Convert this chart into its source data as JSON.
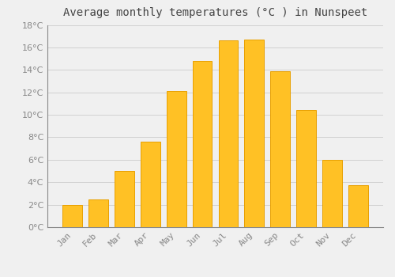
{
  "title": "Average monthly temperatures (°C ) in Nunspeet",
  "months": [
    "Jan",
    "Feb",
    "Mar",
    "Apr",
    "May",
    "Jun",
    "Jul",
    "Aug",
    "Sep",
    "Oct",
    "Nov",
    "Dec"
  ],
  "temperatures": [
    2.0,
    2.5,
    5.0,
    7.6,
    12.1,
    14.8,
    16.6,
    16.7,
    13.9,
    10.4,
    6.0,
    3.7
  ],
  "bar_color": "#FFC125",
  "bar_edge_color": "#E8A000",
  "background_color": "#F0F0F0",
  "grid_color": "#CCCCCC",
  "text_color": "#888888",
  "title_color": "#444444",
  "spine_color": "#888888",
  "ylim": [
    0,
    18
  ],
  "yticks": [
    0,
    2,
    4,
    6,
    8,
    10,
    12,
    14,
    16,
    18
  ],
  "title_fontsize": 10,
  "tick_fontsize": 8,
  "bar_width": 0.75
}
